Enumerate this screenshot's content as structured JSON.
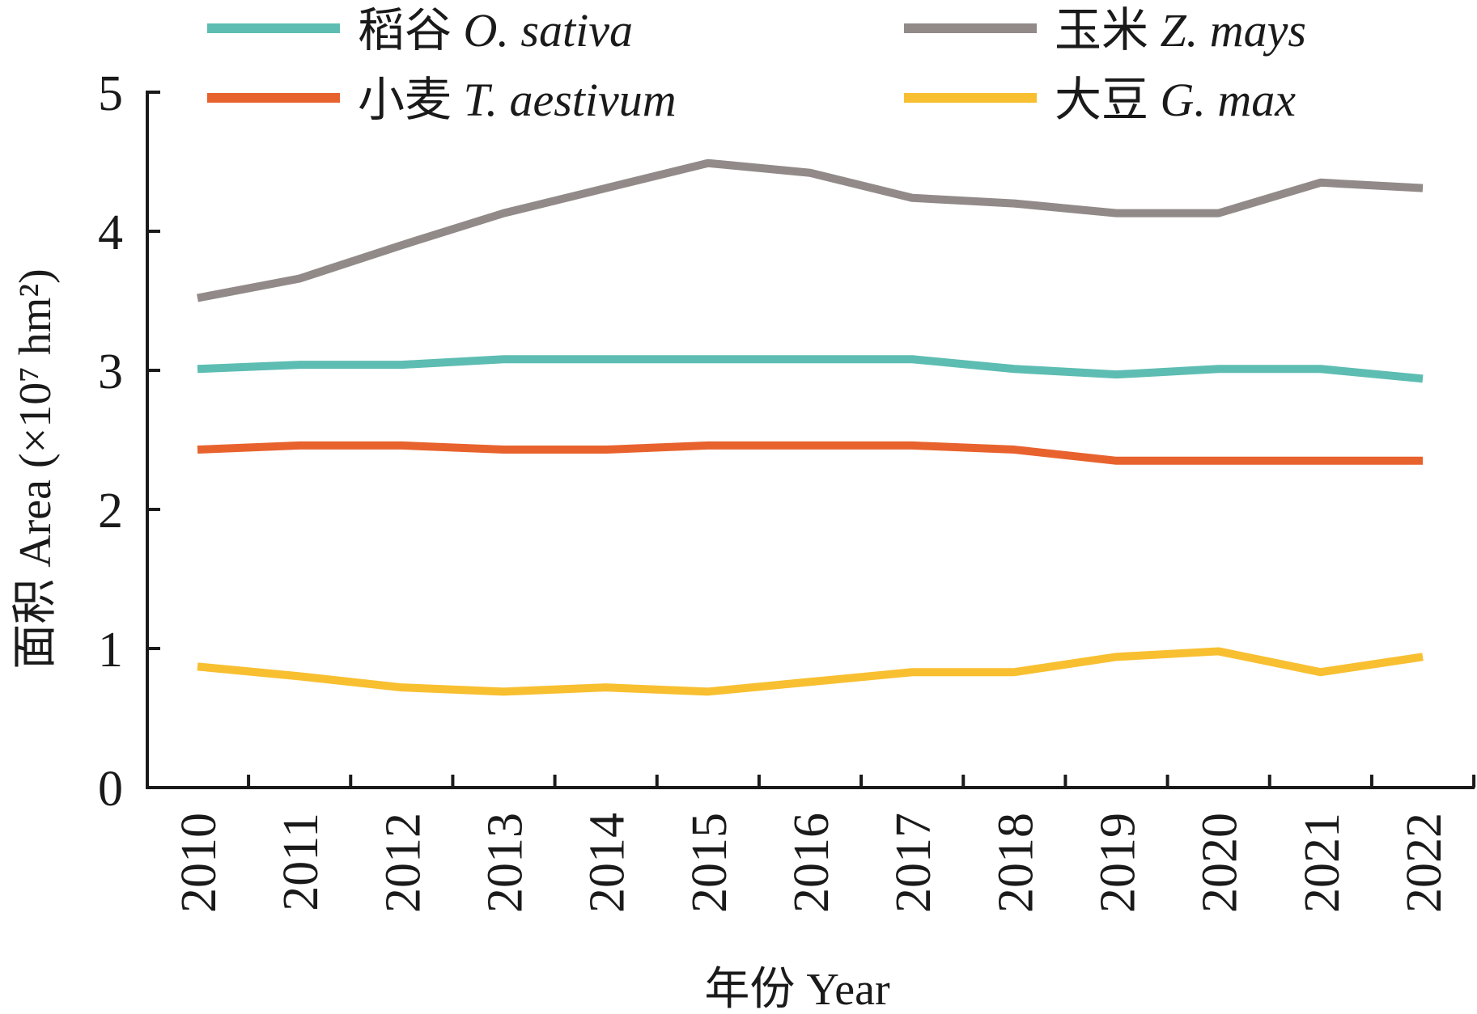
{
  "chart_data": {
    "type": "line",
    "xlabel": "年份 Year",
    "ylabel": "面积 Area (×10⁷ hm²)",
    "ylim": [
      0,
      5
    ],
    "yticks": [
      "0",
      "1",
      "2",
      "3",
      "4",
      "5"
    ],
    "x": [
      "2010",
      "2011",
      "2012",
      "2013",
      "2014",
      "2015",
      "2016",
      "2017",
      "2018",
      "2019",
      "2020",
      "2021",
      "2022"
    ],
    "legend_position": "top",
    "series": [
      {
        "name": "稻谷 O. sativa",
        "cn": "稻谷",
        "latin": "O. sativa",
        "color": "#5dbdb2",
        "values": [
          3.01,
          3.04,
          3.04,
          3.08,
          3.08,
          3.08,
          3.08,
          3.08,
          3.01,
          2.97,
          3.01,
          3.01,
          2.94
        ]
      },
      {
        "name": "小麦 T. aestivum",
        "cn": "小麦",
        "latin": "T. aestivum",
        "color": "#e8622e",
        "values": [
          2.43,
          2.46,
          2.46,
          2.43,
          2.43,
          2.46,
          2.46,
          2.46,
          2.43,
          2.35,
          2.35,
          2.35,
          2.35
        ]
      },
      {
        "name": "玉米 Z. mays",
        "cn": "玉米",
        "latin": "Z. mays",
        "color": "#918a88",
        "values": [
          3.52,
          3.66,
          3.9,
          4.13,
          4.31,
          4.49,
          4.42,
          4.24,
          4.2,
          4.13,
          4.13,
          4.35,
          4.31
        ]
      },
      {
        "name": "大豆 G. max",
        "cn": "大豆",
        "latin": "G. max",
        "color": "#f8bf30",
        "values": [
          0.87,
          0.8,
          0.72,
          0.69,
          0.72,
          0.69,
          0.76,
          0.83,
          0.83,
          0.94,
          0.98,
          0.83,
          0.94
        ]
      }
    ]
  }
}
